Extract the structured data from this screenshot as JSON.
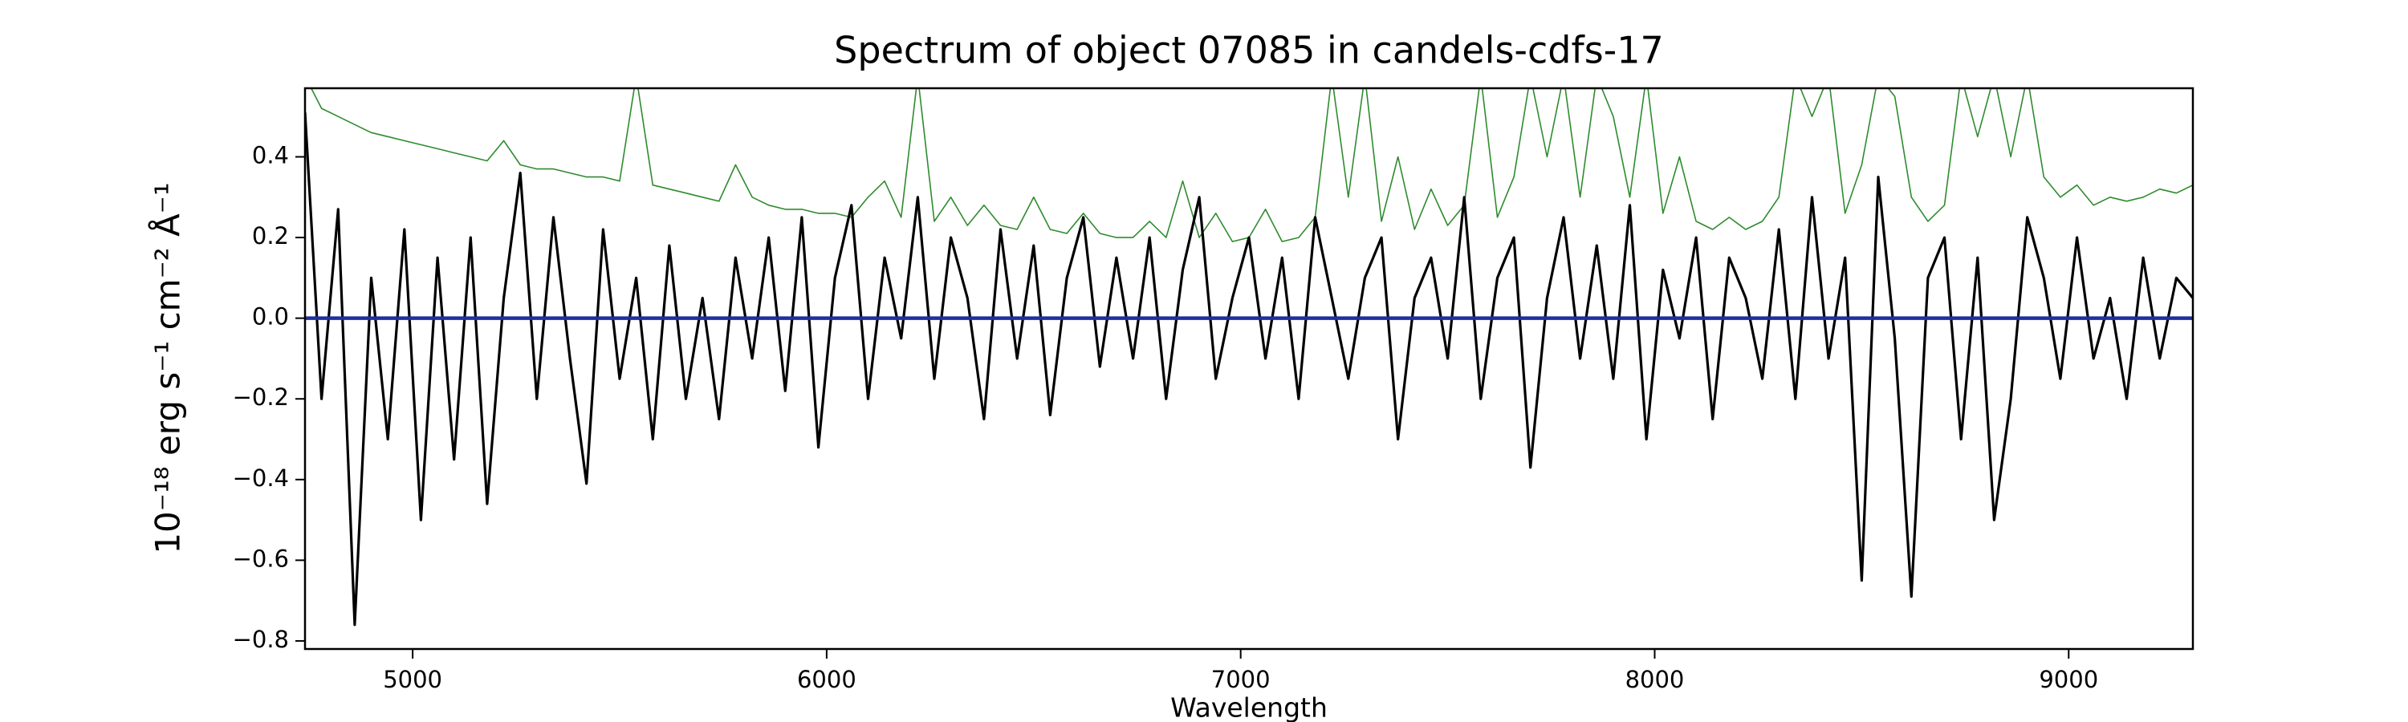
{
  "chart_data": {
    "type": "line",
    "title": "Spectrum of object 07085 in candels-cdfs-17",
    "xlabel": "Wavelength",
    "ylabel": "10⁻¹⁸ erg s⁻¹ cm⁻² Å⁻¹",
    "xlim": [
      4740,
      9300
    ],
    "ylim": [
      -0.82,
      0.57
    ],
    "xticks": [
      5000,
      6000,
      7000,
      8000,
      9000
    ],
    "yticks": [
      {
        "value": -0.8,
        "label": "−0.8"
      },
      {
        "value": -0.6,
        "label": "−0.6"
      },
      {
        "value": -0.4,
        "label": "−0.4"
      },
      {
        "value": -0.2,
        "label": "−0.2"
      },
      {
        "value": 0,
        "label": "0.0"
      },
      0.2,
      0.4
    ],
    "grid": false,
    "x": [
      4740,
      4780,
      4820,
      4860,
      4900,
      4940,
      4980,
      5020,
      5060,
      5100,
      5140,
      5180,
      5220,
      5260,
      5300,
      5340,
      5380,
      5420,
      5460,
      5500,
      5540,
      5580,
      5620,
      5660,
      5700,
      5740,
      5780,
      5820,
      5860,
      5900,
      5940,
      5980,
      6020,
      6060,
      6100,
      6140,
      6180,
      6220,
      6260,
      6300,
      6340,
      6380,
      6420,
      6460,
      6500,
      6540,
      6580,
      6620,
      6660,
      6700,
      6740,
      6780,
      6820,
      6860,
      6900,
      6940,
      6980,
      7020,
      7060,
      7100,
      7140,
      7180,
      7220,
      7260,
      7300,
      7340,
      7380,
      7420,
      7460,
      7500,
      7540,
      7580,
      7620,
      7660,
      7700,
      7740,
      7780,
      7820,
      7860,
      7900,
      7940,
      7980,
      8020,
      8060,
      8100,
      8140,
      8180,
      8220,
      8260,
      8300,
      8340,
      8380,
      8420,
      8460,
      8500,
      8540,
      8580,
      8620,
      8660,
      8700,
      8740,
      8780,
      8820,
      8860,
      8900,
      8940,
      8980,
      9020,
      9060,
      9100,
      9140,
      9180,
      9220,
      9260,
      9300
    ],
    "series": [
      {
        "color": "#2e8b2e",
        "width": 1.6,
        "values": [
          0.6,
          0.52,
          0.5,
          0.48,
          0.46,
          0.45,
          0.44,
          0.43,
          0.42,
          0.41,
          0.4,
          0.39,
          0.44,
          0.38,
          0.37,
          0.37,
          0.36,
          0.35,
          0.35,
          0.34,
          0.6,
          0.33,
          0.32,
          0.31,
          0.3,
          0.29,
          0.38,
          0.3,
          0.28,
          0.27,
          0.27,
          0.26,
          0.26,
          0.25,
          0.3,
          0.34,
          0.25,
          0.6,
          0.24,
          0.3,
          0.23,
          0.28,
          0.23,
          0.22,
          0.3,
          0.22,
          0.21,
          0.26,
          0.21,
          0.2,
          0.2,
          0.24,
          0.2,
          0.34,
          0.2,
          0.26,
          0.19,
          0.2,
          0.27,
          0.19,
          0.2,
          0.25,
          0.6,
          0.3,
          0.6,
          0.24,
          0.4,
          0.22,
          0.32,
          0.23,
          0.28,
          0.6,
          0.25,
          0.35,
          0.6,
          0.4,
          0.6,
          0.3,
          0.6,
          0.5,
          0.3,
          0.6,
          0.26,
          0.4,
          0.24,
          0.22,
          0.25,
          0.22,
          0.24,
          0.3,
          0.6,
          0.5,
          0.6,
          0.26,
          0.38,
          0.6,
          0.55,
          0.3,
          0.24,
          0.28,
          0.6,
          0.45,
          0.6,
          0.4,
          0.6,
          0.35,
          0.3,
          0.33,
          0.28,
          0.3,
          0.29,
          0.3,
          0.32,
          0.31,
          0.33
        ]
      },
      {
        "color": "#000000",
        "width": 3.2,
        "values": [
          0.51,
          -0.2,
          0.27,
          -0.76,
          0.1,
          -0.3,
          0.22,
          -0.5,
          0.15,
          -0.35,
          0.2,
          -0.46,
          0.05,
          0.36,
          -0.2,
          0.25,
          -0.1,
          -0.41,
          0.22,
          -0.15,
          0.1,
          -0.3,
          0.18,
          -0.2,
          0.05,
          -0.25,
          0.15,
          -0.1,
          0.2,
          -0.18,
          0.25,
          -0.32,
          0.1,
          0.28,
          -0.2,
          0.15,
          -0.05,
          0.3,
          -0.15,
          0.2,
          0.05,
          -0.25,
          0.22,
          -0.1,
          0.18,
          -0.24,
          0.1,
          0.25,
          -0.12,
          0.15,
          -0.1,
          0.2,
          -0.2,
          0.12,
          0.3,
          -0.15,
          0.05,
          0.2,
          -0.1,
          0.15,
          -0.2,
          0.25,
          0.05,
          -0.15,
          0.1,
          0.2,
          -0.3,
          0.05,
          0.15,
          -0.1,
          0.3,
          -0.2,
          0.1,
          0.2,
          -0.37,
          0.05,
          0.25,
          -0.1,
          0.18,
          -0.15,
          0.28,
          -0.3,
          0.12,
          -0.05,
          0.2,
          -0.25,
          0.15,
          0.05,
          -0.15,
          0.22,
          -0.2,
          0.3,
          -0.1,
          0.15,
          -0.65,
          0.35,
          -0.05,
          -0.69,
          0.1,
          0.2,
          -0.3,
          0.15,
          -0.5,
          -0.2,
          0.25,
          0.1,
          -0.15,
          0.2,
          -0.1,
          0.05,
          -0.2,
          0.15,
          -0.1,
          0.1,
          0.05
        ]
      },
      {
        "color": "#1f2f9f",
        "width": 4.5,
        "values": [
          0,
          0,
          0,
          0,
          0,
          0,
          0,
          0,
          0,
          0,
          0,
          0,
          0,
          0,
          0,
          0,
          0,
          0,
          0,
          0,
          0,
          0,
          0,
          0,
          0,
          0,
          0,
          0,
          0,
          0,
          0,
          0,
          0,
          0,
          0,
          0,
          0,
          0,
          0,
          0,
          0,
          0,
          0,
          0,
          0,
          0,
          0,
          0,
          0,
          0,
          0,
          0,
          0,
          0,
          0,
          0,
          0,
          0,
          0,
          0,
          0,
          0,
          0,
          0,
          0,
          0,
          0,
          0,
          0,
          0,
          0,
          0,
          0,
          0,
          0,
          0,
          0,
          0,
          0,
          0,
          0,
          0,
          0,
          0,
          0,
          0,
          0,
          0,
          0,
          0,
          0,
          0,
          0,
          0,
          0,
          0,
          0,
          0,
          0,
          0,
          0,
          0,
          0,
          0,
          0,
          0,
          0,
          0,
          0,
          0,
          0,
          0,
          0,
          0,
          0
        ]
      }
    ]
  }
}
